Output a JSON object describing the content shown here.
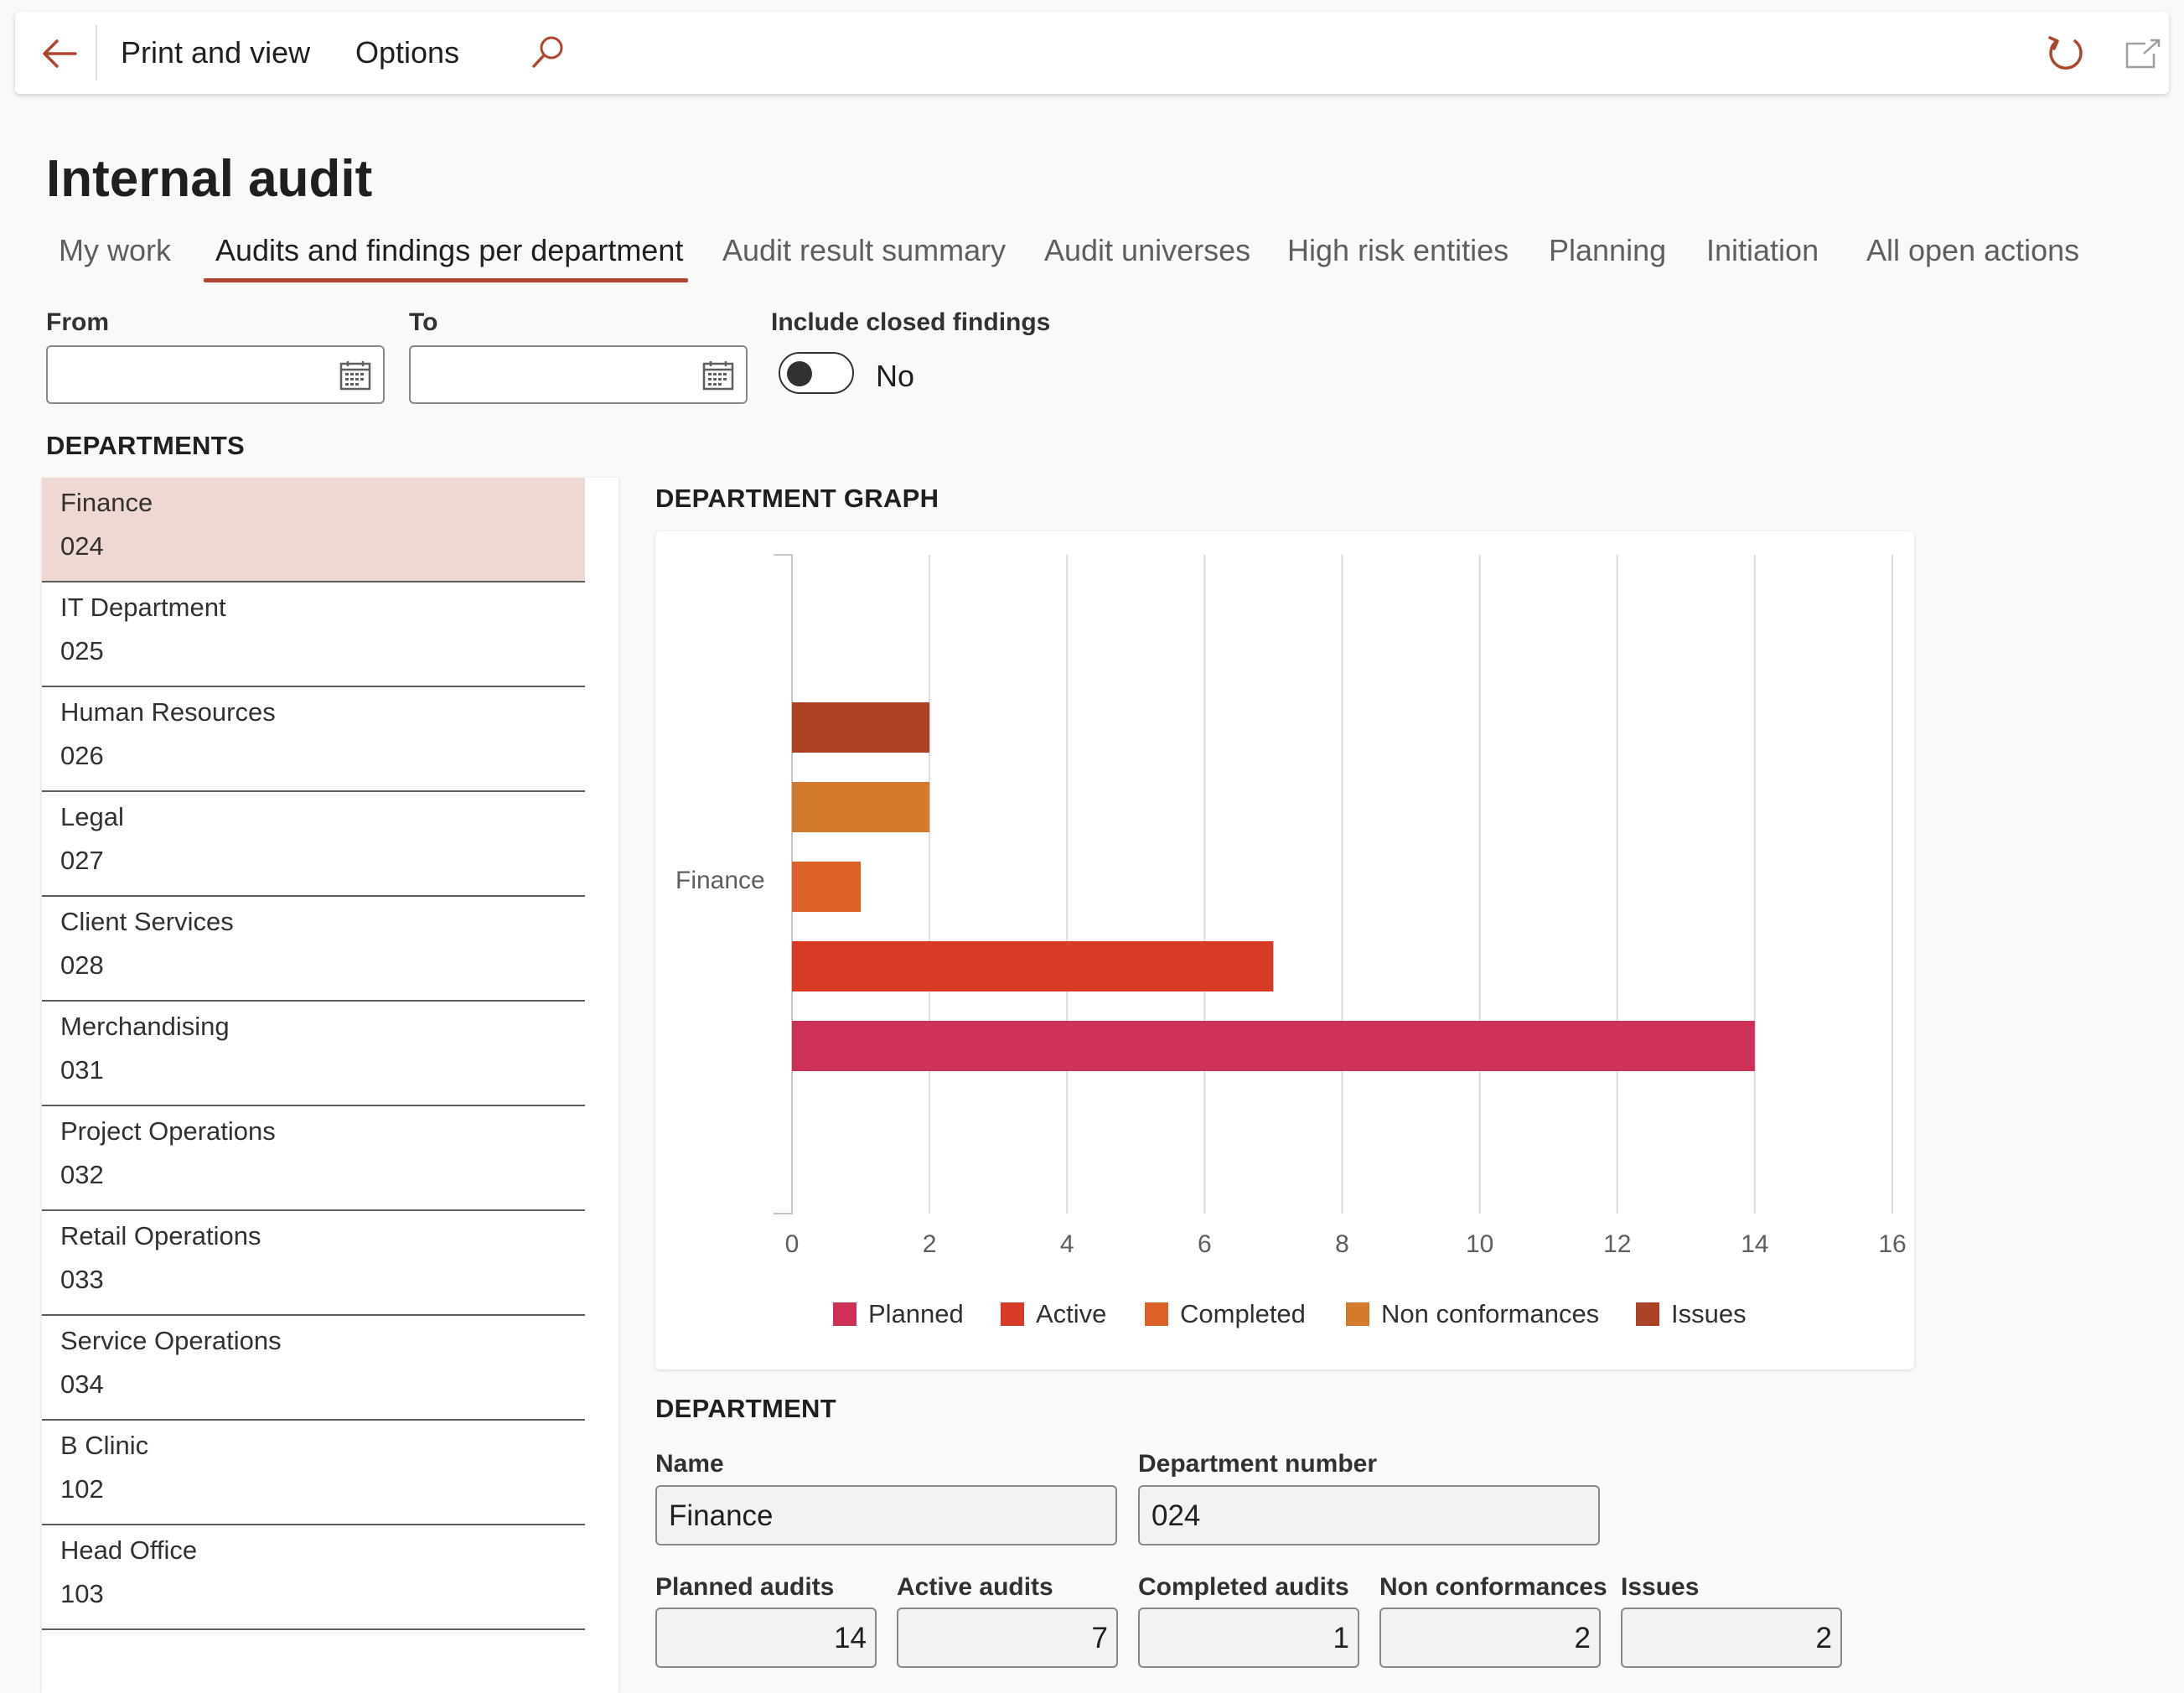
{
  "commandbar": {
    "print_and_view": "Print and view",
    "options": "Options"
  },
  "icons": {
    "back": "back-arrow-icon",
    "search": "search-icon",
    "refresh": "refresh-icon",
    "popout": "open-in-new-window-icon",
    "calendar": "calendar-icon"
  },
  "page": {
    "title": "Internal audit"
  },
  "tabs": [
    {
      "label": "My work",
      "active": false
    },
    {
      "label": "Audits and findings per department",
      "active": true
    },
    {
      "label": "Audit result summary",
      "active": false
    },
    {
      "label": "Audit universes",
      "active": false
    },
    {
      "label": "High risk entities",
      "active": false
    },
    {
      "label": "Planning",
      "active": false
    },
    {
      "label": "Initiation",
      "active": false
    },
    {
      "label": "All open actions",
      "active": false
    }
  ],
  "filters": {
    "from_label": "From",
    "from_value": "",
    "to_label": "To",
    "to_value": "",
    "closed_label": "Include closed findings",
    "closed_value": "No"
  },
  "departments": {
    "heading": "DEPARTMENTS",
    "items": [
      {
        "name": "Finance",
        "number": "024",
        "selected": true
      },
      {
        "name": "IT Department",
        "number": "025",
        "selected": false
      },
      {
        "name": "Human Resources",
        "number": "026",
        "selected": false
      },
      {
        "name": "Legal",
        "number": "027",
        "selected": false
      },
      {
        "name": "Client Services",
        "number": "028",
        "selected": false
      },
      {
        "name": "Merchandising",
        "number": "031",
        "selected": false
      },
      {
        "name": "Project Operations",
        "number": "032",
        "selected": false
      },
      {
        "name": "Retail Operations",
        "number": "033",
        "selected": false
      },
      {
        "name": "Service Operations",
        "number": "034",
        "selected": false
      },
      {
        "name": "B Clinic",
        "number": "102",
        "selected": false
      },
      {
        "name": "Head Office",
        "number": "103",
        "selected": false
      }
    ]
  },
  "graph": {
    "heading": "DEPARTMENT GRAPH"
  },
  "chart_data": {
    "type": "bar",
    "orientation": "horizontal",
    "title": "",
    "categories": [
      "Finance"
    ],
    "series": [
      {
        "name": "Planned",
        "values": [
          14
        ],
        "color": "#cd3157"
      },
      {
        "name": "Active",
        "values": [
          7
        ],
        "color": "#d73b27"
      },
      {
        "name": "Completed",
        "values": [
          1
        ],
        "color": "#dc6128"
      },
      {
        "name": "Non conformances",
        "values": [
          2
        ],
        "color": "#d47a2d"
      },
      {
        "name": "Issues",
        "values": [
          2
        ],
        "color": "#ad4126"
      }
    ],
    "xlim": [
      0,
      16
    ],
    "xticks": [
      0,
      2,
      4,
      6,
      8,
      10,
      12,
      14,
      16
    ],
    "grid": true,
    "legend": "bottom"
  },
  "department": {
    "heading": "DEPARTMENT",
    "name_label": "Name",
    "name_value": "Finance",
    "number_label": "Department number",
    "number_value": "024",
    "planned_label": "Planned audits",
    "planned_value": "14",
    "active_label": "Active audits",
    "active_value": "7",
    "completed_label": "Completed audits",
    "completed_value": "1",
    "nonconf_label": "Non conformances",
    "nonconf_value": "2",
    "issues_label": "Issues",
    "issues_value": "2"
  }
}
